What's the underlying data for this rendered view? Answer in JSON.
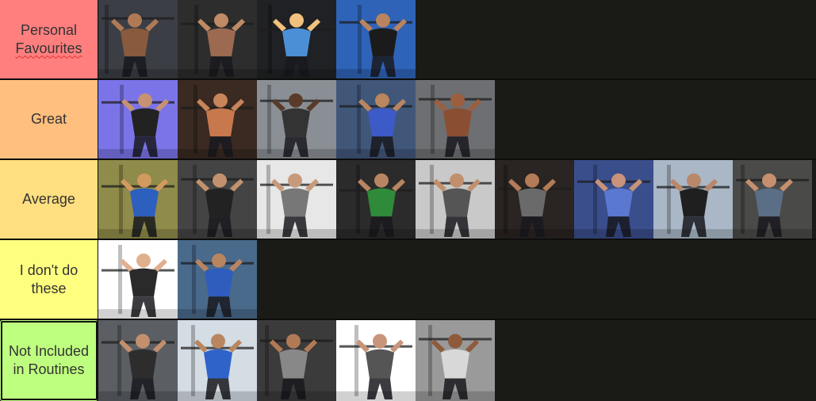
{
  "tiers": [
    {
      "label_lines": [
        "Personal",
        "Favourites"
      ],
      "spell_flag_line": 1,
      "color": "#ff7f7f",
      "exercises": [
        {
          "name": "lat-pulldown-back-icon",
          "bg": "#3b3e45",
          "accent": "#8a5a3e",
          "skin": "#b07a56"
        },
        {
          "name": "face-pull-icon",
          "bg": "#2d2d2d",
          "accent": "#9b6a50",
          "skin": "#c08a66"
        },
        {
          "name": "bench-press-cartoon-icon",
          "bg": "#202124",
          "accent": "#4b8fd6",
          "skin": "#f1c27d"
        },
        {
          "name": "deadlift-icon",
          "bg": "#2f63b8",
          "accent": "#1b1b1b",
          "skin": "#b9835f"
        }
      ]
    },
    {
      "label_lines": [
        "Great"
      ],
      "color": "#ffbf7f",
      "exercises": [
        {
          "name": "barbell-lunge-icon",
          "bg": "#7b74e8",
          "accent": "#222",
          "skin": "#c69273"
        },
        {
          "name": "overhead-press-icon",
          "bg": "#3a2a22",
          "accent": "#c7784c",
          "skin": "#c7855a"
        },
        {
          "name": "smith-machine-press-icon",
          "bg": "#8a8f95",
          "accent": "#333",
          "skin": "#5a3b2a"
        },
        {
          "name": "seated-press-icon",
          "bg": "#41577a",
          "accent": "#3d5ac9",
          "skin": "#b98660"
        },
        {
          "name": "rear-delt-back-icon",
          "bg": "#6d6f72",
          "accent": "#8a4f33",
          "skin": "#9b5f3f"
        }
      ]
    },
    {
      "label_lines": [
        "Average"
      ],
      "color": "#ffdf7f",
      "exercises": [
        {
          "name": "triceps-extension-icon",
          "bg": "#8f8b4a",
          "accent": "#2d5fbf",
          "skin": "#d39a60"
        },
        {
          "name": "dumbbell-row-icon",
          "bg": "#444",
          "accent": "#222",
          "skin": "#c2926e"
        },
        {
          "name": "goblet-squat-icon",
          "bg": "#e7e7e7",
          "accent": "#777",
          "skin": "#c89a7c"
        },
        {
          "name": "back-squat-icon",
          "bg": "#2b2b2b",
          "accent": "#2f8a3a",
          "skin": "#b88563"
        },
        {
          "name": "cable-fly-icon",
          "bg": "#c9c9c9",
          "accent": "#555",
          "skin": "#c18f6c"
        },
        {
          "name": "hip-thrust-icon",
          "bg": "#2a2422",
          "accent": "#6a6a6a",
          "skin": "#b37b58"
        },
        {
          "name": "leg-press-icon",
          "bg": "#3a4e8c",
          "accent": "#5a78d0",
          "skin": "#c8937a"
        },
        {
          "name": "bent-over-raise-icon",
          "bg": "#a9b7c6",
          "accent": "#1f1f1f",
          "skin": "#b9876a"
        },
        {
          "name": "rear-delt-fly-icon",
          "bg": "#4a4a48",
          "accent": "#5a6e86",
          "skin": "#c58f70"
        }
      ]
    },
    {
      "label_lines": [
        "I don't do",
        "these"
      ],
      "color": "#ffff7f",
      "exercises": [
        {
          "name": "upright-row-icon",
          "bg": "#ffffff",
          "accent": "#2a2a2a",
          "skin": "#e0b08e"
        },
        {
          "name": "machine-shoulder-press-icon",
          "bg": "#4a6a8c",
          "accent": "#2f5dbd",
          "skin": "#b98560"
        }
      ]
    },
    {
      "label_lines": [
        "Not Included",
        "in Routines"
      ],
      "color": "#bfff7f",
      "selected": true,
      "exercises": [
        {
          "name": "leg-curl-machine-icon",
          "bg": "#5b5e63",
          "accent": "#2d2d2d",
          "skin": "#c38f6c"
        },
        {
          "name": "leg-extension-icon",
          "bg": "#d4dce4",
          "accent": "#2f63c9",
          "skin": "#b98660"
        },
        {
          "name": "lying-leg-curl-icon",
          "bg": "#3b3b3b",
          "accent": "#888",
          "skin": "#b07a56"
        },
        {
          "name": "seated-machine-icon",
          "bg": "#ffffff",
          "accent": "#555",
          "skin": "#c8957a"
        },
        {
          "name": "back-shrug-icon",
          "bg": "#9a9a9a",
          "accent": "#d8d8d8",
          "skin": "#8f5a3c"
        }
      ]
    }
  ]
}
